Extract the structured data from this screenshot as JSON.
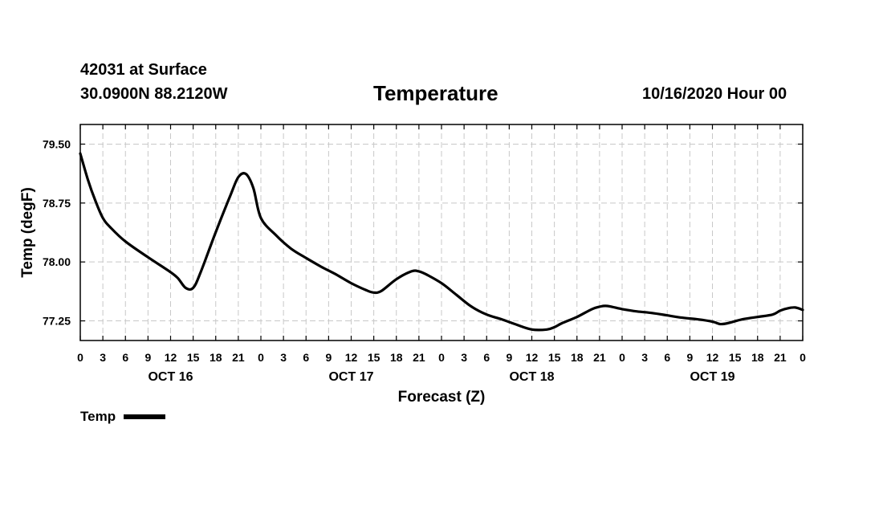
{
  "header": {
    "station": "42031 at Surface",
    "coords": "30.0900N 88.2120W",
    "title": "Temperature",
    "run": "10/16/2020 Hour 00"
  },
  "chart_data": {
    "type": "line",
    "title": "Temperature",
    "xlabel": "Forecast (Z)",
    "ylabel": "Temp (degF)",
    "xlim": [
      0,
      96
    ],
    "ylim": [
      77.0,
      79.75
    ],
    "yticks": [
      77.25,
      78.0,
      78.75,
      79.5
    ],
    "ytick_labels": [
      "77.25",
      "78.00",
      "78.75",
      "79.50"
    ],
    "xtick_hours": [
      0,
      3,
      6,
      9,
      12,
      15,
      18,
      21,
      24,
      27,
      30,
      33,
      36,
      39,
      42,
      45,
      48,
      51,
      54,
      57,
      60,
      63,
      66,
      69,
      72,
      75,
      78,
      81,
      84,
      87,
      90,
      93,
      96
    ],
    "xtick_labels": [
      "0",
      "3",
      "6",
      "9",
      "12",
      "15",
      "18",
      "21",
      "0",
      "3",
      "6",
      "9",
      "12",
      "15",
      "18",
      "21",
      "0",
      "3",
      "6",
      "9",
      "12",
      "15",
      "18",
      "21",
      "0",
      "3",
      "6",
      "9",
      "12",
      "15",
      "18",
      "21",
      "0"
    ],
    "day_labels": [
      {
        "hour": 12,
        "label": "OCT 16"
      },
      {
        "hour": 36,
        "label": "OCT 17"
      },
      {
        "hour": 60,
        "label": "OCT 18"
      },
      {
        "hour": 84,
        "label": "OCT 19"
      }
    ],
    "grid": true,
    "series": [
      {
        "name": "Temp",
        "color": "#000000",
        "x": [
          0,
          1,
          2,
          3,
          4,
          6,
          9,
          12,
          13,
          14,
          15,
          16,
          18,
          20,
          21,
          22,
          23,
          24,
          26,
          28,
          30,
          32,
          34,
          36,
          38,
          39,
          40,
          42,
          44,
          45,
          46,
          48,
          50,
          52,
          54,
          56,
          58,
          60,
          62,
          63,
          64,
          66,
          68,
          69,
          70,
          72,
          74,
          76,
          78,
          80,
          82,
          84,
          85,
          86,
          88,
          90,
          92,
          93,
          94,
          95,
          96
        ],
        "y": [
          79.38,
          79.05,
          78.78,
          78.56,
          78.44,
          78.26,
          78.06,
          77.87,
          77.79,
          77.67,
          77.67,
          77.87,
          78.38,
          78.86,
          79.08,
          79.12,
          78.94,
          78.56,
          78.34,
          78.17,
          78.05,
          77.94,
          77.84,
          77.73,
          77.64,
          77.61,
          77.63,
          77.78,
          77.88,
          77.88,
          77.84,
          77.73,
          77.58,
          77.43,
          77.33,
          77.27,
          77.2,
          77.14,
          77.14,
          77.17,
          77.22,
          77.3,
          77.4,
          77.43,
          77.44,
          77.4,
          77.37,
          77.35,
          77.32,
          77.29,
          77.27,
          77.24,
          77.21,
          77.22,
          77.27,
          77.3,
          77.33,
          77.38,
          77.41,
          77.42,
          77.39
        ]
      }
    ]
  },
  "legend": {
    "label": "Temp"
  }
}
